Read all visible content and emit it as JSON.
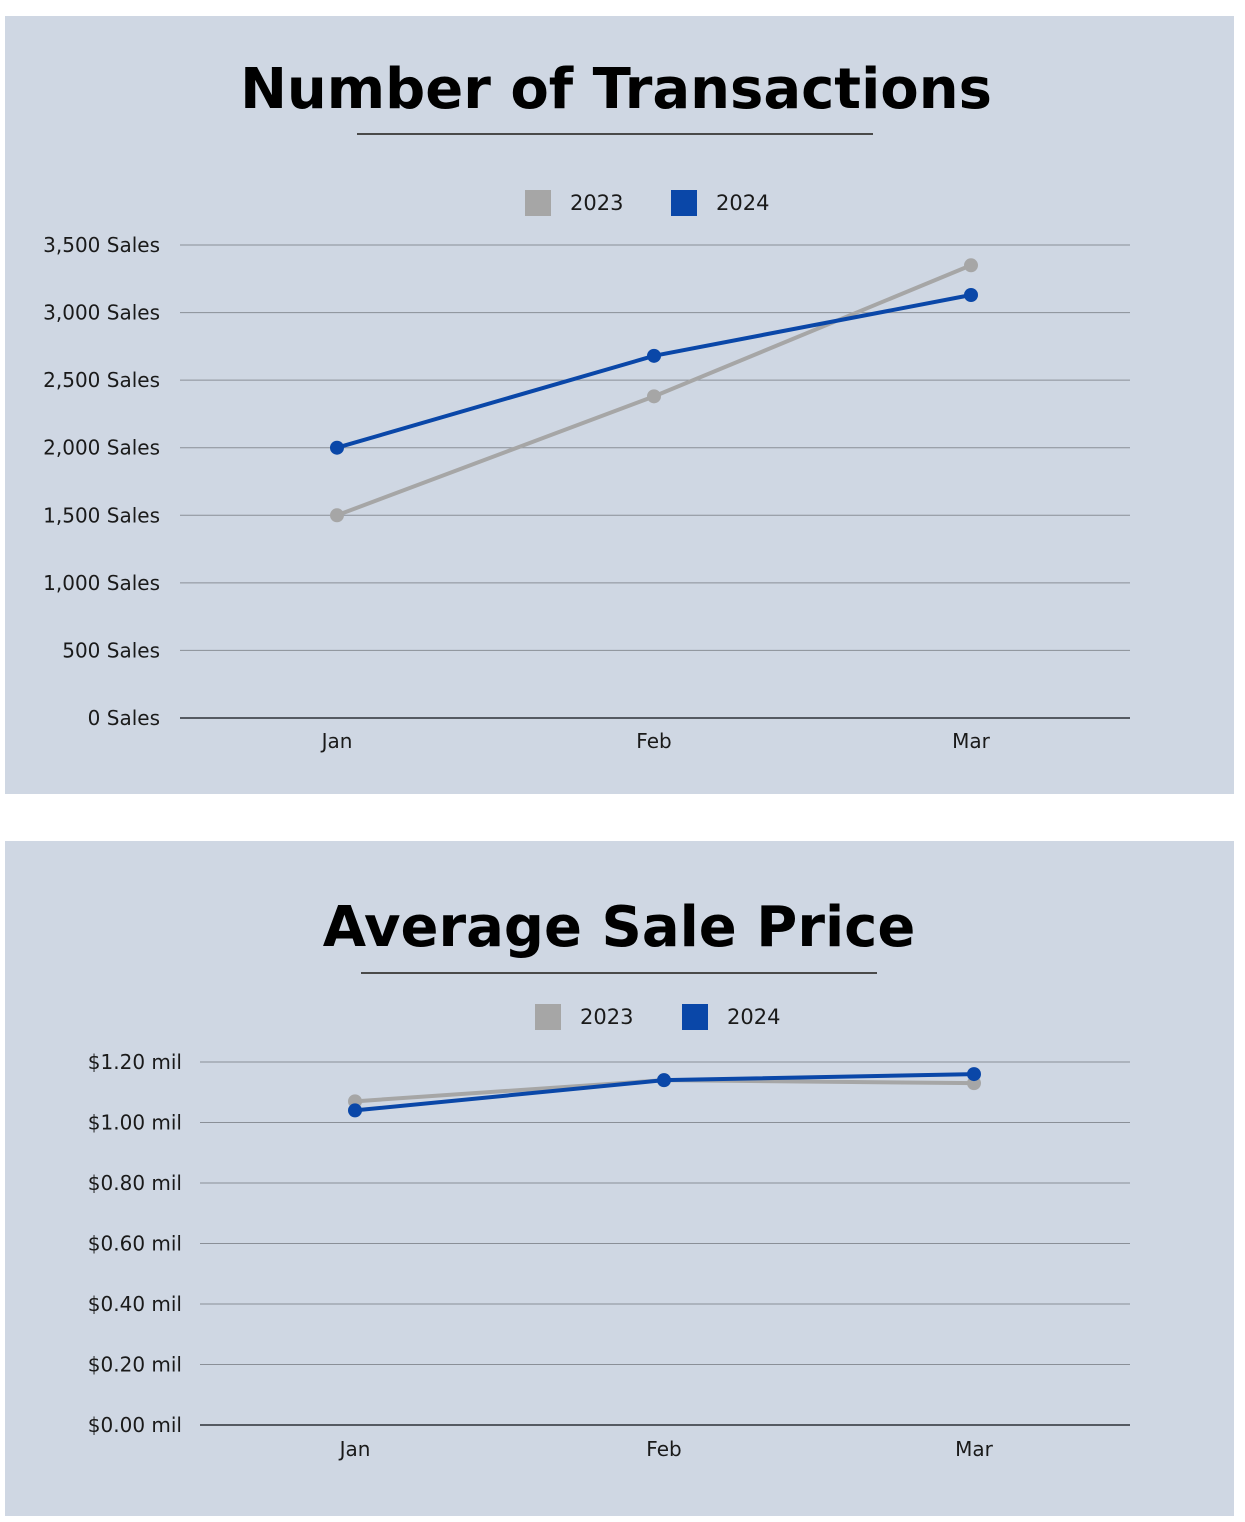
{
  "colors": {
    "panel_bg": "#cfd7e3",
    "series_2023": "#a6a6a6",
    "series_2024": "#0a47a8",
    "grid": "#8a8f97",
    "axis": "#555a62"
  },
  "chart_data": [
    {
      "type": "line",
      "title": "Number of Transactions",
      "categories": [
        "Jan",
        "Feb",
        "Mar"
      ],
      "series": [
        {
          "name": "2023",
          "values": [
            1500,
            2380,
            3350
          ]
        },
        {
          "name": "2024",
          "values": [
            2000,
            2680,
            3130
          ]
        }
      ],
      "ylim": [
        0,
        3500
      ],
      "yticks": [
        {
          "value": 0,
          "label": "0 Sales"
        },
        {
          "value": 500,
          "label": "500 Sales"
        },
        {
          "value": 1000,
          "label": "1,000 Sales"
        },
        {
          "value": 1500,
          "label": "1,500 Sales"
        },
        {
          "value": 2000,
          "label": "2,000 Sales"
        },
        {
          "value": 2500,
          "label": "2,500 Sales"
        },
        {
          "value": 3000,
          "label": "3,000 Sales"
        },
        {
          "value": 3500,
          "label": "3,500 Sales"
        }
      ],
      "grid": true,
      "legend": "top-center"
    },
    {
      "type": "line",
      "title": "Average Sale Price",
      "categories": [
        "Jan",
        "Feb",
        "Mar"
      ],
      "series": [
        {
          "name": "2023",
          "values": [
            1.07,
            1.14,
            1.13
          ]
        },
        {
          "name": "2024",
          "values": [
            1.04,
            1.14,
            1.16
          ]
        }
      ],
      "ylim": [
        0,
        1.2
      ],
      "yticks": [
        {
          "value": 0,
          "label": "$0.00 mil"
        },
        {
          "value": 0.2,
          "label": "$0.20 mil"
        },
        {
          "value": 0.4,
          "label": "$0.40 mil"
        },
        {
          "value": 0.6,
          "label": "$0.60 mil"
        },
        {
          "value": 0.8,
          "label": "$0.80 mil"
        },
        {
          "value": 1.0,
          "label": "$1.00 mil"
        },
        {
          "value": 1.2,
          "label": "$1.20 mil"
        }
      ],
      "grid": true,
      "legend": "top-center"
    }
  ]
}
